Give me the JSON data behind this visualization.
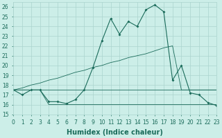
{
  "xlabel": "Humidex (Indice chaleur)",
  "bg_color": "#cceee8",
  "grid_color": "#aad4ce",
  "line_color": "#1a6b5a",
  "xlim": [
    0,
    23
  ],
  "ylim": [
    15,
    26.5
  ],
  "yticks": [
    15,
    16,
    17,
    18,
    19,
    20,
    21,
    22,
    23,
    24,
    25,
    26
  ],
  "xtick_labels": [
    "0",
    "1",
    "2",
    "3",
    "4",
    "5",
    "6",
    "7",
    "8",
    "9",
    "10",
    "11",
    "12",
    "13",
    "14",
    "15",
    "16",
    "17",
    "18",
    "19",
    "20",
    "21",
    "22",
    "23"
  ],
  "series": {
    "main": [
      17.5,
      17.0,
      17.5,
      17.5,
      16.3,
      16.3,
      16.1,
      16.5,
      17.5,
      19.8,
      22.5,
      24.8,
      23.2,
      24.5,
      24.0,
      25.7,
      26.2,
      25.5,
      18.5,
      20.0,
      17.2,
      17.0,
      16.2,
      15.9
    ],
    "flat_hi": [
      17.5,
      17.5,
      17.5,
      17.5,
      17.5,
      17.5,
      17.5,
      17.5,
      17.5,
      17.5,
      17.5,
      17.5,
      17.5,
      17.5,
      17.5,
      17.5,
      17.5,
      17.5,
      17.5,
      17.5,
      17.5,
      17.5,
      17.5,
      17.5
    ],
    "flat_lo": [
      17.5,
      17.5,
      17.5,
      17.5,
      16.0,
      16.0,
      16.0,
      16.0,
      16.0,
      16.0,
      16.0,
      16.0,
      16.0,
      16.0,
      16.0,
      16.0,
      16.0,
      16.0,
      16.0,
      16.0,
      16.0,
      16.0,
      16.0,
      16.0
    ],
    "diagonal": [
      17.5,
      17.7,
      18.0,
      18.2,
      18.5,
      18.7,
      19.0,
      19.3,
      19.5,
      19.8,
      20.0,
      20.3,
      20.5,
      20.8,
      21.0,
      21.2,
      21.5,
      21.8,
      22.0,
      17.5,
      17.5,
      17.5,
      17.5,
      17.5
    ]
  },
  "xlabel_fontsize": 7,
  "tick_fontsize": 5.5
}
